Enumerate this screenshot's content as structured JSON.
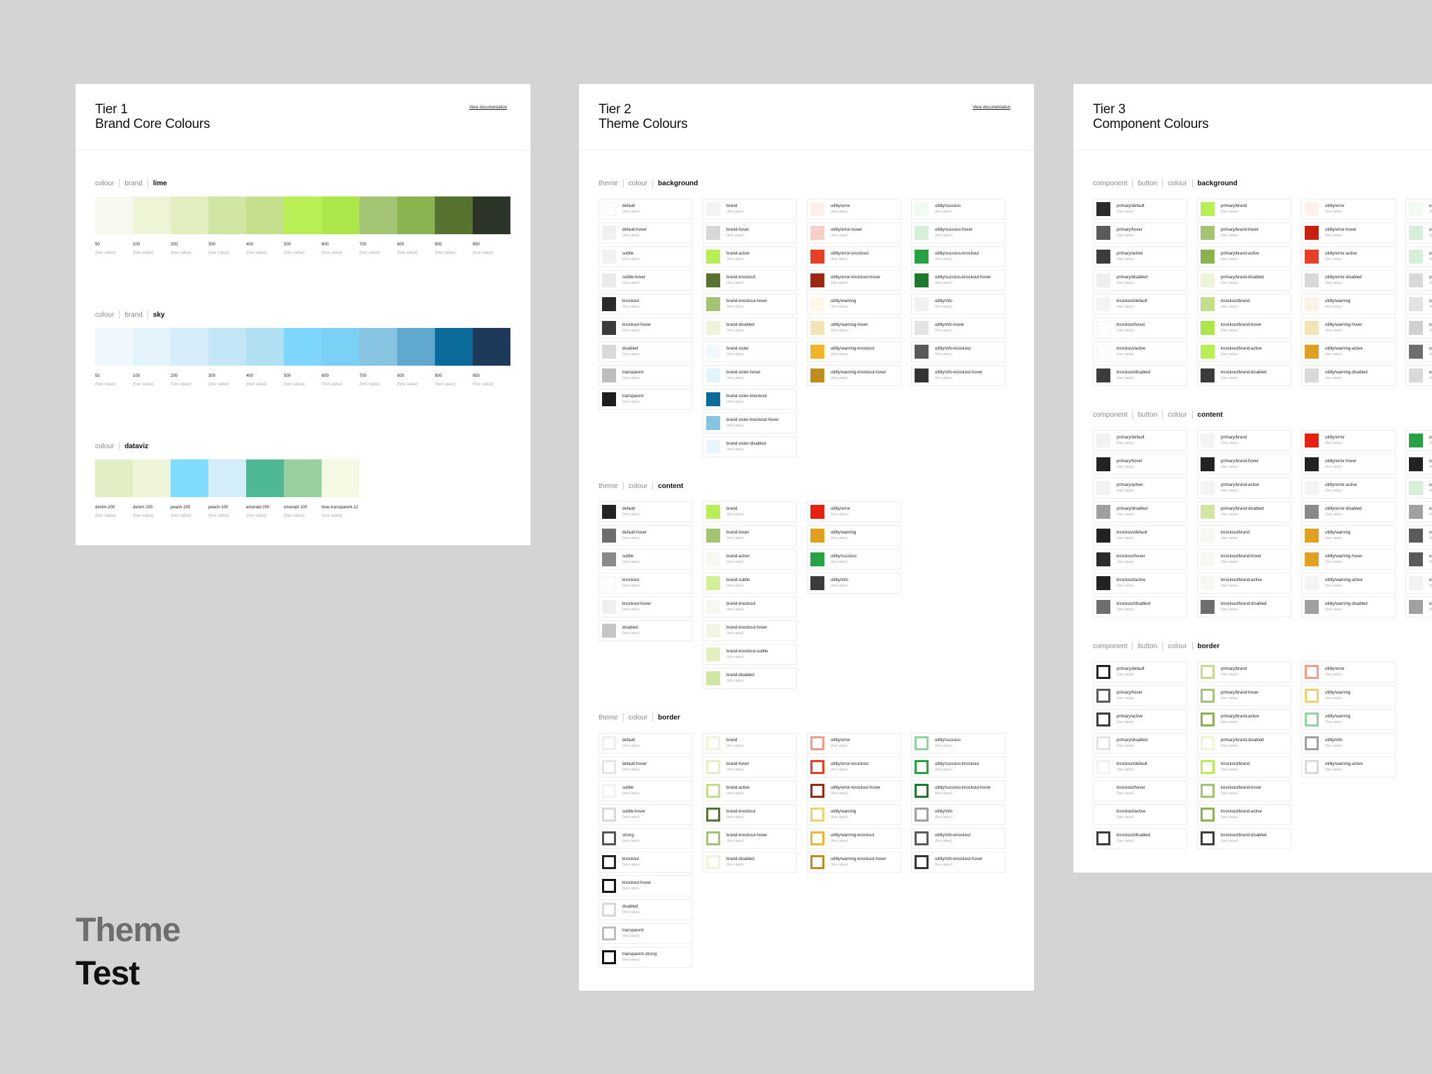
{
  "footer": {
    "line1": "Theme",
    "line2": "Test"
  },
  "hex_placeholder": "(hex value)",
  "tier1": {
    "title1": "Tier 1",
    "title2": "Brand Core Colours",
    "doc": "View documentation",
    "groups": [
      {
        "crumb": [
          "colour",
          "brand",
          "lime"
        ],
        "swatches": [
          {
            "label": "50",
            "color": "#f7f9f0"
          },
          {
            "label": "100",
            "color": "#eef5d6"
          },
          {
            "label": "200",
            "color": "#e3efc0"
          },
          {
            "label": "300",
            "color": "#d2e6a3"
          },
          {
            "label": "400",
            "color": "#c3df8c"
          },
          {
            "label": "500",
            "color": "#b8ef55"
          },
          {
            "label": "600",
            "color": "#abe748"
          },
          {
            "label": "700",
            "color": "#a3c573"
          },
          {
            "label": "800",
            "color": "#8ab34f"
          },
          {
            "label": "900",
            "color": "#567430"
          },
          {
            "label": "950",
            "color": "#2c3528"
          }
        ]
      },
      {
        "crumb": [
          "colour",
          "brand",
          "sky"
        ],
        "swatches": [
          {
            "label": "50",
            "color": "#eef8fe"
          },
          {
            "label": "100",
            "color": "#e2f3fc"
          },
          {
            "label": "200",
            "color": "#d5eefa"
          },
          {
            "label": "300",
            "color": "#c3e7f6"
          },
          {
            "label": "400",
            "color": "#b1e0f2"
          },
          {
            "label": "500",
            "color": "#7fd6fd"
          },
          {
            "label": "600",
            "color": "#7bd0f5"
          },
          {
            "label": "700",
            "color": "#87c4e2"
          },
          {
            "label": "800",
            "color": "#5ea9cd"
          },
          {
            "label": "900",
            "color": "#0b6c9c"
          },
          {
            "label": "950",
            "color": "#1d3a5a"
          }
        ]
      },
      {
        "crumb": [
          "colour",
          "dataviz"
        ],
        "swatches": [
          {
            "label": "denim-200",
            "color": "#e2efc4"
          },
          {
            "label": "denim-100",
            "color": "#eef5d9"
          },
          {
            "label": "peach-200",
            "color": "#7fdcfc"
          },
          {
            "label": "peach-100",
            "color": "#d3eefa"
          },
          {
            "label": "emerald 200",
            "color": "#4db893"
          },
          {
            "label": "emerald 100",
            "color": "#98cf9e"
          },
          {
            "label": "blue-transparent-12",
            "color": "#f5f9e4"
          }
        ]
      }
    ]
  },
  "tier2": {
    "title1": "Tier 2",
    "title2": "Theme Colours",
    "doc": "View documentation",
    "background": {
      "crumb": [
        "theme",
        "colour",
        "background"
      ],
      "columns": [
        [
          {
            "n": "default",
            "c": "#ffffff"
          },
          {
            "n": "default-hover",
            "c": "#f0f0f0"
          },
          {
            "n": "subtle",
            "c": "#f2f2f2"
          },
          {
            "n": "subtle-hover",
            "c": "#ebebeb"
          },
          {
            "n": "knockout",
            "c": "#2a2a2a"
          },
          {
            "n": "knockout-hover",
            "c": "#3b3b3b"
          },
          {
            "n": "disabled",
            "c": "#d9d9d9"
          },
          {
            "n": "transparent",
            "c": "#bdbdbd"
          },
          {
            "n": "transparent",
            "c": "#1c1c1c"
          }
        ],
        [
          {
            "n": "brand",
            "c": "#f4f4f4"
          },
          {
            "n": "brand-hover",
            "c": "#d8d8d8"
          },
          {
            "n": "brand-active",
            "c": "#b8ef55"
          },
          {
            "n": "brand-knockout",
            "c": "#567430"
          },
          {
            "n": "brand-knockout-hover",
            "c": "#a3c573"
          },
          {
            "n": "brand-disabled",
            "c": "#eef5d6"
          },
          {
            "n": "brand-sister",
            "c": "#f2f9fe"
          },
          {
            "n": "brand-sister-hover",
            "c": "#e2f3fc"
          },
          {
            "n": "brand-sister-knockout",
            "c": "#0b6c9c"
          },
          {
            "n": "brand-sister-knockout-hover",
            "c": "#87c4e2"
          },
          {
            "n": "brand-sister-disabled",
            "c": "#eaf6fd"
          }
        ],
        [
          {
            "n": "utility/error",
            "c": "#fdf0ed"
          },
          {
            "n": "utility/error-hover",
            "c": "#f8cfc4"
          },
          {
            "n": "utility/error-knockout",
            "c": "#e84024"
          },
          {
            "n": "utility/error-knockout-hover",
            "c": "#9c2811"
          },
          {
            "n": "utility/warning",
            "c": "#fbf8e6"
          },
          {
            "n": "utility/warning-hover",
            "c": "#f3e4b7"
          },
          {
            "n": "utility/warning-knockout",
            "c": "#f2b52a"
          },
          {
            "n": "utility/warning-knockout-hover",
            "c": "#c08c1e"
          }
        ],
        [
          {
            "n": "utility/success",
            "c": "#f2fbf2"
          },
          {
            "n": "utility/success-hover",
            "c": "#d6efd8"
          },
          {
            "n": "utility/success-knockout",
            "c": "#27a344"
          },
          {
            "n": "utility/success-knockout-hover",
            "c": "#1d7a2c"
          },
          {
            "n": "utility/info",
            "c": "#f2f2f2"
          },
          {
            "n": "utility/info-hover",
            "c": "#e4e4e4"
          },
          {
            "n": "utility/info-knockout",
            "c": "#5a5a5a"
          },
          {
            "n": "utility/info-knockout-hover",
            "c": "#333333"
          }
        ]
      ]
    },
    "content": {
      "crumb": [
        "theme",
        "colour",
        "content"
      ],
      "columns": [
        [
          {
            "n": "default",
            "c": "#222222"
          },
          {
            "n": "default-hover",
            "c": "#6e6e6e"
          },
          {
            "n": "subtle",
            "c": "#8a8a8a"
          },
          {
            "n": "knockout",
            "c": "#ffffff"
          },
          {
            "n": "knockout-hover",
            "c": "#efefef"
          },
          {
            "n": "disabled",
            "c": "#c6c6c6"
          }
        ],
        [
          {
            "n": "brand",
            "c": "#b8ef55"
          },
          {
            "n": "brand-hover",
            "c": "#a3c573"
          },
          {
            "n": "brand-active",
            "c": "#f7f9f0"
          },
          {
            "n": "brand-subtle",
            "c": "#d2f098"
          },
          {
            "n": "brand-knockout",
            "c": "#f7f9f0"
          },
          {
            "n": "brand-knockout-hover",
            "c": "#f2f6e0"
          },
          {
            "n": "brand-knockout-subtle",
            "c": "#e3efc0"
          },
          {
            "n": "brand-disabled",
            "c": "#d2e6a3"
          }
        ],
        [
          {
            "n": "utility/error",
            "c": "#e8200f"
          },
          {
            "n": "utility/warning",
            "c": "#e0a020"
          },
          {
            "n": "utility/success",
            "c": "#27a344"
          },
          {
            "n": "utility/info",
            "c": "#3b3b3b"
          }
        ]
      ]
    },
    "border": {
      "crumb": [
        "theme",
        "colour",
        "border"
      ],
      "columns": [
        [
          {
            "n": "default",
            "c": "#eeeeee"
          },
          {
            "n": "default-hover",
            "c": "#e4e4e4"
          },
          {
            "n": "subtle",
            "c": "#f2f2f2"
          },
          {
            "n": "subtle-hover",
            "c": "#d9d9d9"
          },
          {
            "n": "strong",
            "c": "#555555"
          },
          {
            "n": "knockout",
            "c": "#222222"
          },
          {
            "n": "knockout-hover",
            "c": "#111111"
          },
          {
            "n": "disabled",
            "c": "#d9d9d9"
          },
          {
            "n": "transparent",
            "c": "#bdbdbd"
          },
          {
            "n": "transparent-strong",
            "c": "#111111"
          }
        ],
        [
          {
            "n": "brand",
            "c": "#eef5d6"
          },
          {
            "n": "brand-hover",
            "c": "#e3efc0"
          },
          {
            "n": "brand-active",
            "c": "#c3df8c"
          },
          {
            "n": "brand-knockout",
            "c": "#567430"
          },
          {
            "n": "brand-knockout-hover",
            "c": "#a3c573"
          },
          {
            "n": "brand-disabled",
            "c": "#eef5d6"
          }
        ],
        [
          {
            "n": "utility/error",
            "c": "#f19b8a"
          },
          {
            "n": "utility/error-knockout",
            "c": "#e84024"
          },
          {
            "n": "utility/error-knockout-hover",
            "c": "#9c2811"
          },
          {
            "n": "utility/warning",
            "c": "#f5cf6a"
          },
          {
            "n": "utility/warning-knockout",
            "c": "#f2b52a"
          },
          {
            "n": "utility/warning-knockout-hover",
            "c": "#c08c1e"
          }
        ],
        [
          {
            "n": "utility/success",
            "c": "#8fd49a"
          },
          {
            "n": "utility/success-knockout",
            "c": "#27a344"
          },
          {
            "n": "utility/success-knockout-hover",
            "c": "#1d7a2c"
          },
          {
            "n": "utility/info",
            "c": "#a0a0a0"
          },
          {
            "n": "utility/info-knockout",
            "c": "#5a5a5a"
          },
          {
            "n": "utility/info-knockout-hover",
            "c": "#333333"
          }
        ]
      ]
    }
  },
  "tier3": {
    "title1": "Tier 3",
    "title2": "Component Colours",
    "background": {
      "crumb": [
        "component",
        "button",
        "colour",
        "background"
      ],
      "columns": [
        [
          {
            "n": "primary/default",
            "c": "#2a2a2a"
          },
          {
            "n": "primary/hover",
            "c": "#5a5a5a"
          },
          {
            "n": "primary/active",
            "c": "#3b3b3b"
          },
          {
            "n": "primary/disabled",
            "c": "#efefef"
          },
          {
            "n": "knockout/default",
            "c": "#f4f4f4"
          },
          {
            "n": "knockout/hover",
            "c": "#ffffff"
          },
          {
            "n": "knockout/active",
            "c": "#ffffff"
          },
          {
            "n": "knockout/disabled",
            "c": "#3b3b3b"
          }
        ],
        [
          {
            "n": "primary/brand",
            "c": "#b8ef55"
          },
          {
            "n": "primary/brand-hover",
            "c": "#a3c573"
          },
          {
            "n": "primary/brand-active",
            "c": "#8ab34f"
          },
          {
            "n": "primary/brand-disabled",
            "c": "#eef5d6"
          },
          {
            "n": "knockout/brand",
            "c": "#c3df8c"
          },
          {
            "n": "knockout/brand-hover",
            "c": "#abe748"
          },
          {
            "n": "knockout/brand-active",
            "c": "#b8ef55"
          },
          {
            "n": "knockout/brand-disabled",
            "c": "#3b3b3b"
          }
        ],
        [
          {
            "n": "utility/error",
            "c": "#fdf0ed"
          },
          {
            "n": "utility/error-hover",
            "c": "#c8200f"
          },
          {
            "n": "utility/error-active",
            "c": "#e84024"
          },
          {
            "n": "utility/error-disabled",
            "c": "#d9d9d9"
          },
          {
            "n": "utility/warning",
            "c": "#f7f4e2"
          },
          {
            "n": "utility/warning-hover",
            "c": "#f3e4b7"
          },
          {
            "n": "utility/warning-active",
            "c": "#e0a020"
          },
          {
            "n": "utility/warning-disabled",
            "c": "#d9d9d9"
          }
        ],
        [
          {
            "n": "utility/success",
            "c": "#f2fbf2"
          },
          {
            "n": "utility/success-hover",
            "c": "#d6efd8"
          },
          {
            "n": "utility/success-active",
            "c": "#d6efd8"
          },
          {
            "n": "utility/success-disabled",
            "c": "#d9d9d9"
          },
          {
            "n": "utility/info",
            "c": "#e4e4e4"
          },
          {
            "n": "utility/info-hover",
            "c": "#d0d0d0"
          },
          {
            "n": "utility/info-active",
            "c": "#6e6e6e"
          },
          {
            "n": "utility/info-disabled",
            "c": "#d9d9d9"
          }
        ]
      ]
    },
    "content": {
      "crumb": [
        "component",
        "button",
        "colour",
        "content"
      ],
      "columns": [
        [
          {
            "n": "primary/default",
            "c": "#f2f2f2"
          },
          {
            "n": "primary/hover",
            "c": "#222222"
          },
          {
            "n": "primary/active",
            "c": "#f2f2f2"
          },
          {
            "n": "primary/disabled",
            "c": "#a0a0a0"
          },
          {
            "n": "knockout/default",
            "c": "#222222"
          },
          {
            "n": "knockout/hover",
            "c": "#2a2a2a"
          },
          {
            "n": "knockout/active",
            "c": "#222222"
          },
          {
            "n": "knockout/disabled",
            "c": "#6e6e6e"
          }
        ],
        [
          {
            "n": "primary/brand",
            "c": "#f4f4f4"
          },
          {
            "n": "primary/brand-hover",
            "c": "#222222"
          },
          {
            "n": "primary/brand-active",
            "c": "#f4f4f4"
          },
          {
            "n": "primary/brand-disabled",
            "c": "#d2e6a3"
          },
          {
            "n": "knockout/brand",
            "c": "#f7f9f0"
          },
          {
            "n": "knockout/brand-hover",
            "c": "#f7f9f0"
          },
          {
            "n": "knockout/brand-active",
            "c": "#f7f9f0"
          },
          {
            "n": "knockout/brand-disabled",
            "c": "#6e6e6e"
          }
        ],
        [
          {
            "n": "utility/error",
            "c": "#e8200f"
          },
          {
            "n": "utility/error-hover",
            "c": "#222222"
          },
          {
            "n": "utility/error-active",
            "c": "#f4f4f4"
          },
          {
            "n": "utility/error-disabled",
            "c": "#8a8a8a"
          },
          {
            "n": "utility/warning",
            "c": "#e0a020"
          },
          {
            "n": "utility/warning-hover",
            "c": "#e0a020"
          },
          {
            "n": "utility/warning-active",
            "c": "#f4f4f4"
          },
          {
            "n": "utility/warning-disabled",
            "c": "#a0a0a0"
          }
        ],
        [
          {
            "n": "utility/success",
            "c": "#27a344"
          },
          {
            "n": "utility/success-hover",
            "c": "#222222"
          },
          {
            "n": "utility/success-active",
            "c": "#d6efd8"
          },
          {
            "n": "utility/success-disabled",
            "c": "#a0a0a0"
          },
          {
            "n": "utility/info",
            "c": "#5a5a5a"
          },
          {
            "n": "utility/info-hover",
            "c": "#5a5a5a"
          },
          {
            "n": "utility/info-active",
            "c": "#f2f2f2"
          },
          {
            "n": "utility/info-disabled",
            "c": "#a0a0a0"
          }
        ]
      ]
    },
    "border": {
      "crumb": [
        "component",
        "button",
        "colour",
        "border"
      ],
      "columns": [
        [
          {
            "n": "primary/default",
            "c": "#222222"
          },
          {
            "n": "primary/hover",
            "c": "#5a5a5a"
          },
          {
            "n": "primary/active",
            "c": "#3b3b3b"
          },
          {
            "n": "primary/disabled",
            "c": "#e4e4e4"
          },
          {
            "n": "knockout/default",
            "c": "#f2f2f2"
          },
          {
            "n": "knockout/hover",
            "c": "#ffffff"
          },
          {
            "n": "knockout/active",
            "c": "#ffffff"
          },
          {
            "n": "knockout/disabled",
            "c": "#3b3b3b"
          }
        ],
        [
          {
            "n": "primary/brand",
            "c": "#c3df8c"
          },
          {
            "n": "primary/brand-hover",
            "c": "#a3c573"
          },
          {
            "n": "primary/brand-active",
            "c": "#8ab34f"
          },
          {
            "n": "primary/brand-disabled",
            "c": "#eef5d6"
          },
          {
            "n": "knockout/brand",
            "c": "#b8ef55"
          },
          {
            "n": "knockout/brand-hover",
            "c": "#a3c573"
          },
          {
            "n": "knockout/brand-active",
            "c": "#8ab34f"
          },
          {
            "n": "knockout/brand-disabled",
            "c": "#3b3b3b"
          }
        ],
        [
          {
            "n": "utility/error",
            "c": "#f19b8a"
          },
          {
            "n": "utility/warning",
            "c": "#f5cf6a"
          },
          {
            "n": "utility/warning",
            "c": "#8fd49a"
          },
          {
            "n": "utility/info",
            "c": "#a0a0a0"
          },
          {
            "n": "utility/warning-active",
            "c": "#d9d9d9"
          }
        ]
      ]
    }
  }
}
